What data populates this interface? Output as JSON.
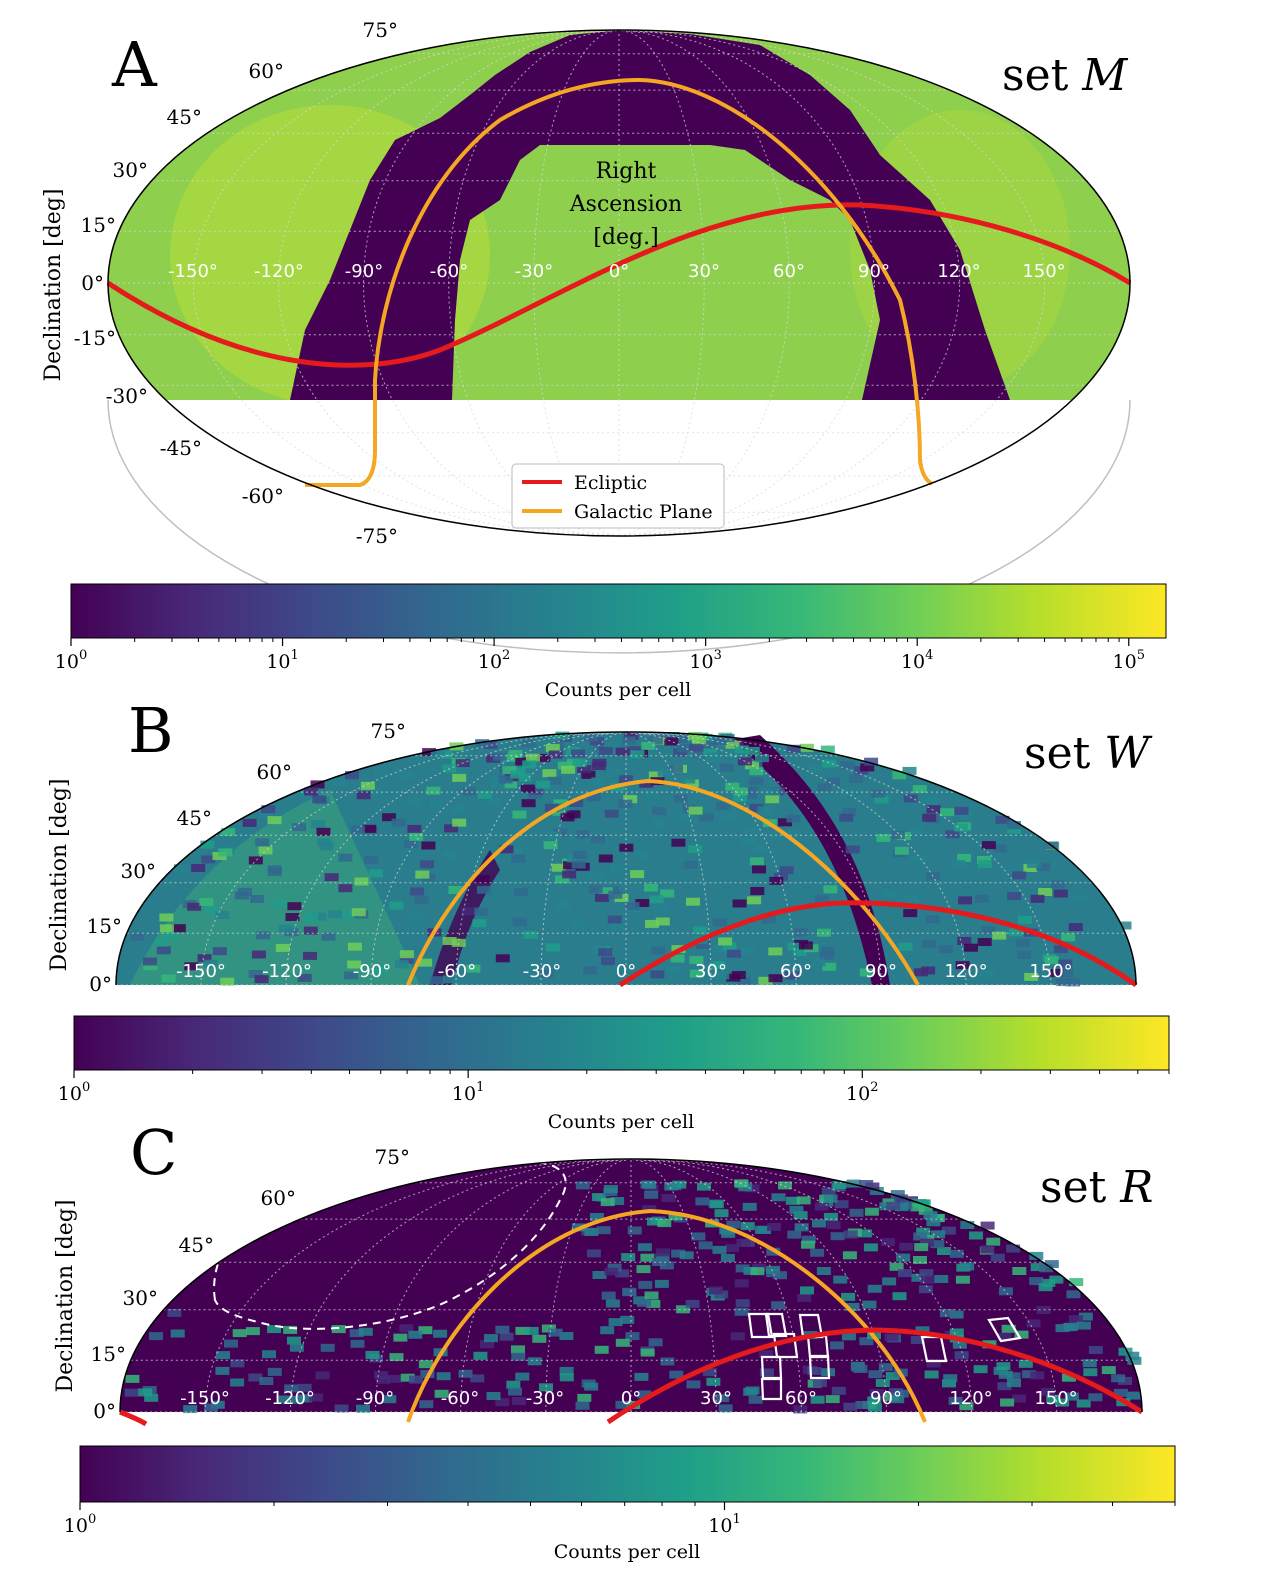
{
  "chart_data": [
    {
      "type": "heatmap",
      "projection": "mollweide",
      "panel_label": "A",
      "set_prefix": "set ",
      "set_name": "M",
      "ylabel": "Declination [deg]",
      "dec_range": [
        -30,
        90
      ],
      "lat_labels": [
        "75°",
        "60°",
        "45°",
        "30°",
        "15°",
        "0°",
        "-15°",
        "-30°",
        "-45°",
        "-60°",
        "-75°"
      ],
      "ra_labels": [
        "-150°",
        "-120°",
        "-90°",
        "-60°",
        "-30°",
        "0°",
        "30°",
        "60°",
        "90°",
        "120°",
        "150°"
      ],
      "ra_title": [
        "Right",
        "Ascension",
        "[deg.]"
      ],
      "legend": [
        "Ecliptic",
        "Galactic Plane"
      ],
      "colorbar": {
        "label": "Counts per cell",
        "scale": "log",
        "range": [
          1,
          150000
        ],
        "ticks": [
          {
            "base": "10",
            "exp": "0"
          },
          {
            "base": "10",
            "exp": "1"
          },
          {
            "base": "10",
            "exp": "2"
          },
          {
            "base": "10",
            "exp": "3"
          },
          {
            "base": "10",
            "exp": "4"
          },
          {
            "base": "10",
            "exp": "5"
          }
        ]
      }
    },
    {
      "type": "heatmap",
      "projection": "mollweide",
      "panel_label": "B",
      "set_prefix": "set ",
      "set_name": "W",
      "ylabel": "Declination [deg]",
      "dec_range": [
        0,
        90
      ],
      "lat_labels": [
        "75°",
        "60°",
        "45°",
        "30°",
        "15°",
        "0°"
      ],
      "ra_labels": [
        "-150°",
        "-120°",
        "-90°",
        "-60°",
        "-30°",
        "0°",
        "30°",
        "60°",
        "90°",
        "120°",
        "150°"
      ],
      "colorbar": {
        "label": "Counts per cell",
        "scale": "log",
        "range": [
          1,
          600
        ],
        "ticks": [
          {
            "base": "10",
            "exp": "0"
          },
          {
            "base": "10",
            "exp": "1"
          },
          {
            "base": "10",
            "exp": "2"
          }
        ]
      }
    },
    {
      "type": "heatmap",
      "projection": "mollweide",
      "panel_label": "C",
      "set_prefix": "set ",
      "set_name": "R",
      "ylabel": "Declination [deg]",
      "dec_range": [
        0,
        90
      ],
      "lat_labels": [
        "75°",
        "60°",
        "45°",
        "30°",
        "15°",
        "0°"
      ],
      "ra_labels": [
        "-150°",
        "-120°",
        "-90°",
        "-60°",
        "-30°",
        "0°",
        "30°",
        "60°",
        "90°",
        "120°",
        "150°"
      ],
      "colorbar": {
        "label": "Counts per cell",
        "scale": "log",
        "range": [
          1,
          50
        ],
        "ticks": [
          {
            "base": "10",
            "exp": "0"
          },
          {
            "base": "10",
            "exp": "1"
          }
        ]
      }
    }
  ],
  "colors": {
    "ecliptic": "#e41a1c",
    "galactic_plane": "#f5a623",
    "viridis": [
      "#440154",
      "#482878",
      "#3e4989",
      "#31688e",
      "#26828e",
      "#1f9e89",
      "#35b779",
      "#6ece58",
      "#b5de2b",
      "#fde725"
    ]
  }
}
